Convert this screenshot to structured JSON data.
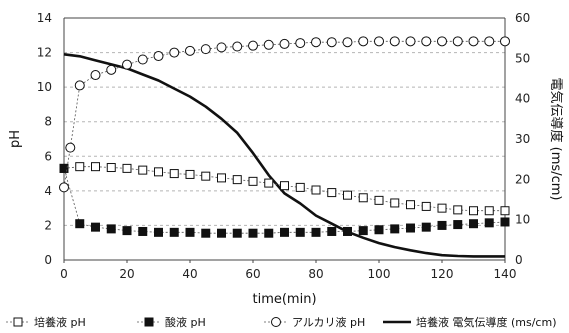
{
  "chart_data": {
    "type": "line",
    "xlabel": "time(min)",
    "ylabel_left": "pH",
    "ylabel_right": "電気伝導度 (ms/cm)",
    "x_ticks": [
      0,
      20,
      40,
      60,
      80,
      100,
      120,
      140
    ],
    "y_left_ticks": [
      0,
      2,
      4,
      6,
      8,
      10,
      12,
      14
    ],
    "y_right_ticks": [
      0,
      10,
      20,
      30,
      40,
      50,
      60
    ],
    "xlim": [
      0,
      140
    ],
    "ylim_left": [
      0,
      14
    ],
    "ylim_right": [
      0,
      60
    ],
    "grid": "horizontal dashed",
    "legend_position": "bottom",
    "series": [
      {
        "name": "培養液 pH",
        "axis": "left",
        "marker": "square-open",
        "line": "dotted",
        "x": [
          0,
          5,
          10,
          15,
          20,
          25,
          30,
          35,
          40,
          45,
          50,
          55,
          60,
          65,
          70,
          75,
          80,
          85,
          90,
          95,
          100,
          105,
          110,
          115,
          120,
          125,
          130,
          135,
          140
        ],
        "y": [
          5.3,
          5.4,
          5.4,
          5.35,
          5.3,
          5.2,
          5.1,
          5.0,
          4.95,
          4.85,
          4.75,
          4.65,
          4.55,
          4.45,
          4.3,
          4.2,
          4.05,
          3.9,
          3.75,
          3.6,
          3.45,
          3.3,
          3.2,
          3.1,
          3.0,
          2.9,
          2.85,
          2.85,
          2.85
        ]
      },
      {
        "name": "酸液 pH",
        "axis": "left",
        "marker": "square-filled",
        "line": "dotted",
        "x": [
          0,
          5,
          10,
          15,
          20,
          25,
          30,
          35,
          40,
          45,
          50,
          55,
          60,
          65,
          70,
          75,
          80,
          85,
          90,
          95,
          100,
          105,
          110,
          115,
          120,
          125,
          130,
          135,
          140
        ],
        "y": [
          5.3,
          2.1,
          1.9,
          1.8,
          1.7,
          1.65,
          1.6,
          1.6,
          1.6,
          1.55,
          1.55,
          1.55,
          1.55,
          1.55,
          1.6,
          1.6,
          1.6,
          1.65,
          1.65,
          1.7,
          1.75,
          1.8,
          1.85,
          1.9,
          2.0,
          2.05,
          2.1,
          2.15,
          2.2
        ]
      },
      {
        "name": "アルカリ液 pH",
        "axis": "left",
        "marker": "circle-open",
        "line": "dotted",
        "x": [
          0,
          2,
          5,
          10,
          15,
          20,
          25,
          30,
          35,
          40,
          45,
          50,
          55,
          60,
          65,
          70,
          75,
          80,
          85,
          90,
          95,
          100,
          105,
          110,
          115,
          120,
          125,
          130,
          135,
          140
        ],
        "y": [
          4.2,
          6.5,
          10.1,
          10.7,
          11.0,
          11.3,
          11.6,
          11.8,
          12.0,
          12.1,
          12.2,
          12.3,
          12.35,
          12.4,
          12.45,
          12.5,
          12.55,
          12.6,
          12.6,
          12.6,
          12.65,
          12.65,
          12.65,
          12.65,
          12.65,
          12.65,
          12.65,
          12.65,
          12.65,
          12.65
        ]
      },
      {
        "name": "培養液 電気伝導度 (ms/cm)",
        "axis": "right",
        "marker": "none",
        "line": "solid-thick",
        "x": [
          0,
          5,
          10,
          15,
          20,
          25,
          30,
          35,
          40,
          45,
          50,
          55,
          60,
          65,
          70,
          75,
          80,
          85,
          90,
          95,
          100,
          105,
          110,
          115,
          120,
          125,
          130,
          135,
          140
        ],
        "y": [
          51,
          50.5,
          49.5,
          48.5,
          47.5,
          46,
          44.5,
          42.5,
          40.5,
          38,
          35,
          31.5,
          26.5,
          21,
          16.5,
          14,
          11,
          9,
          7,
          5.5,
          4.2,
          3.2,
          2.4,
          1.7,
          1.2,
          1.0,
          0.9,
          0.9,
          0.9
        ]
      }
    ]
  }
}
